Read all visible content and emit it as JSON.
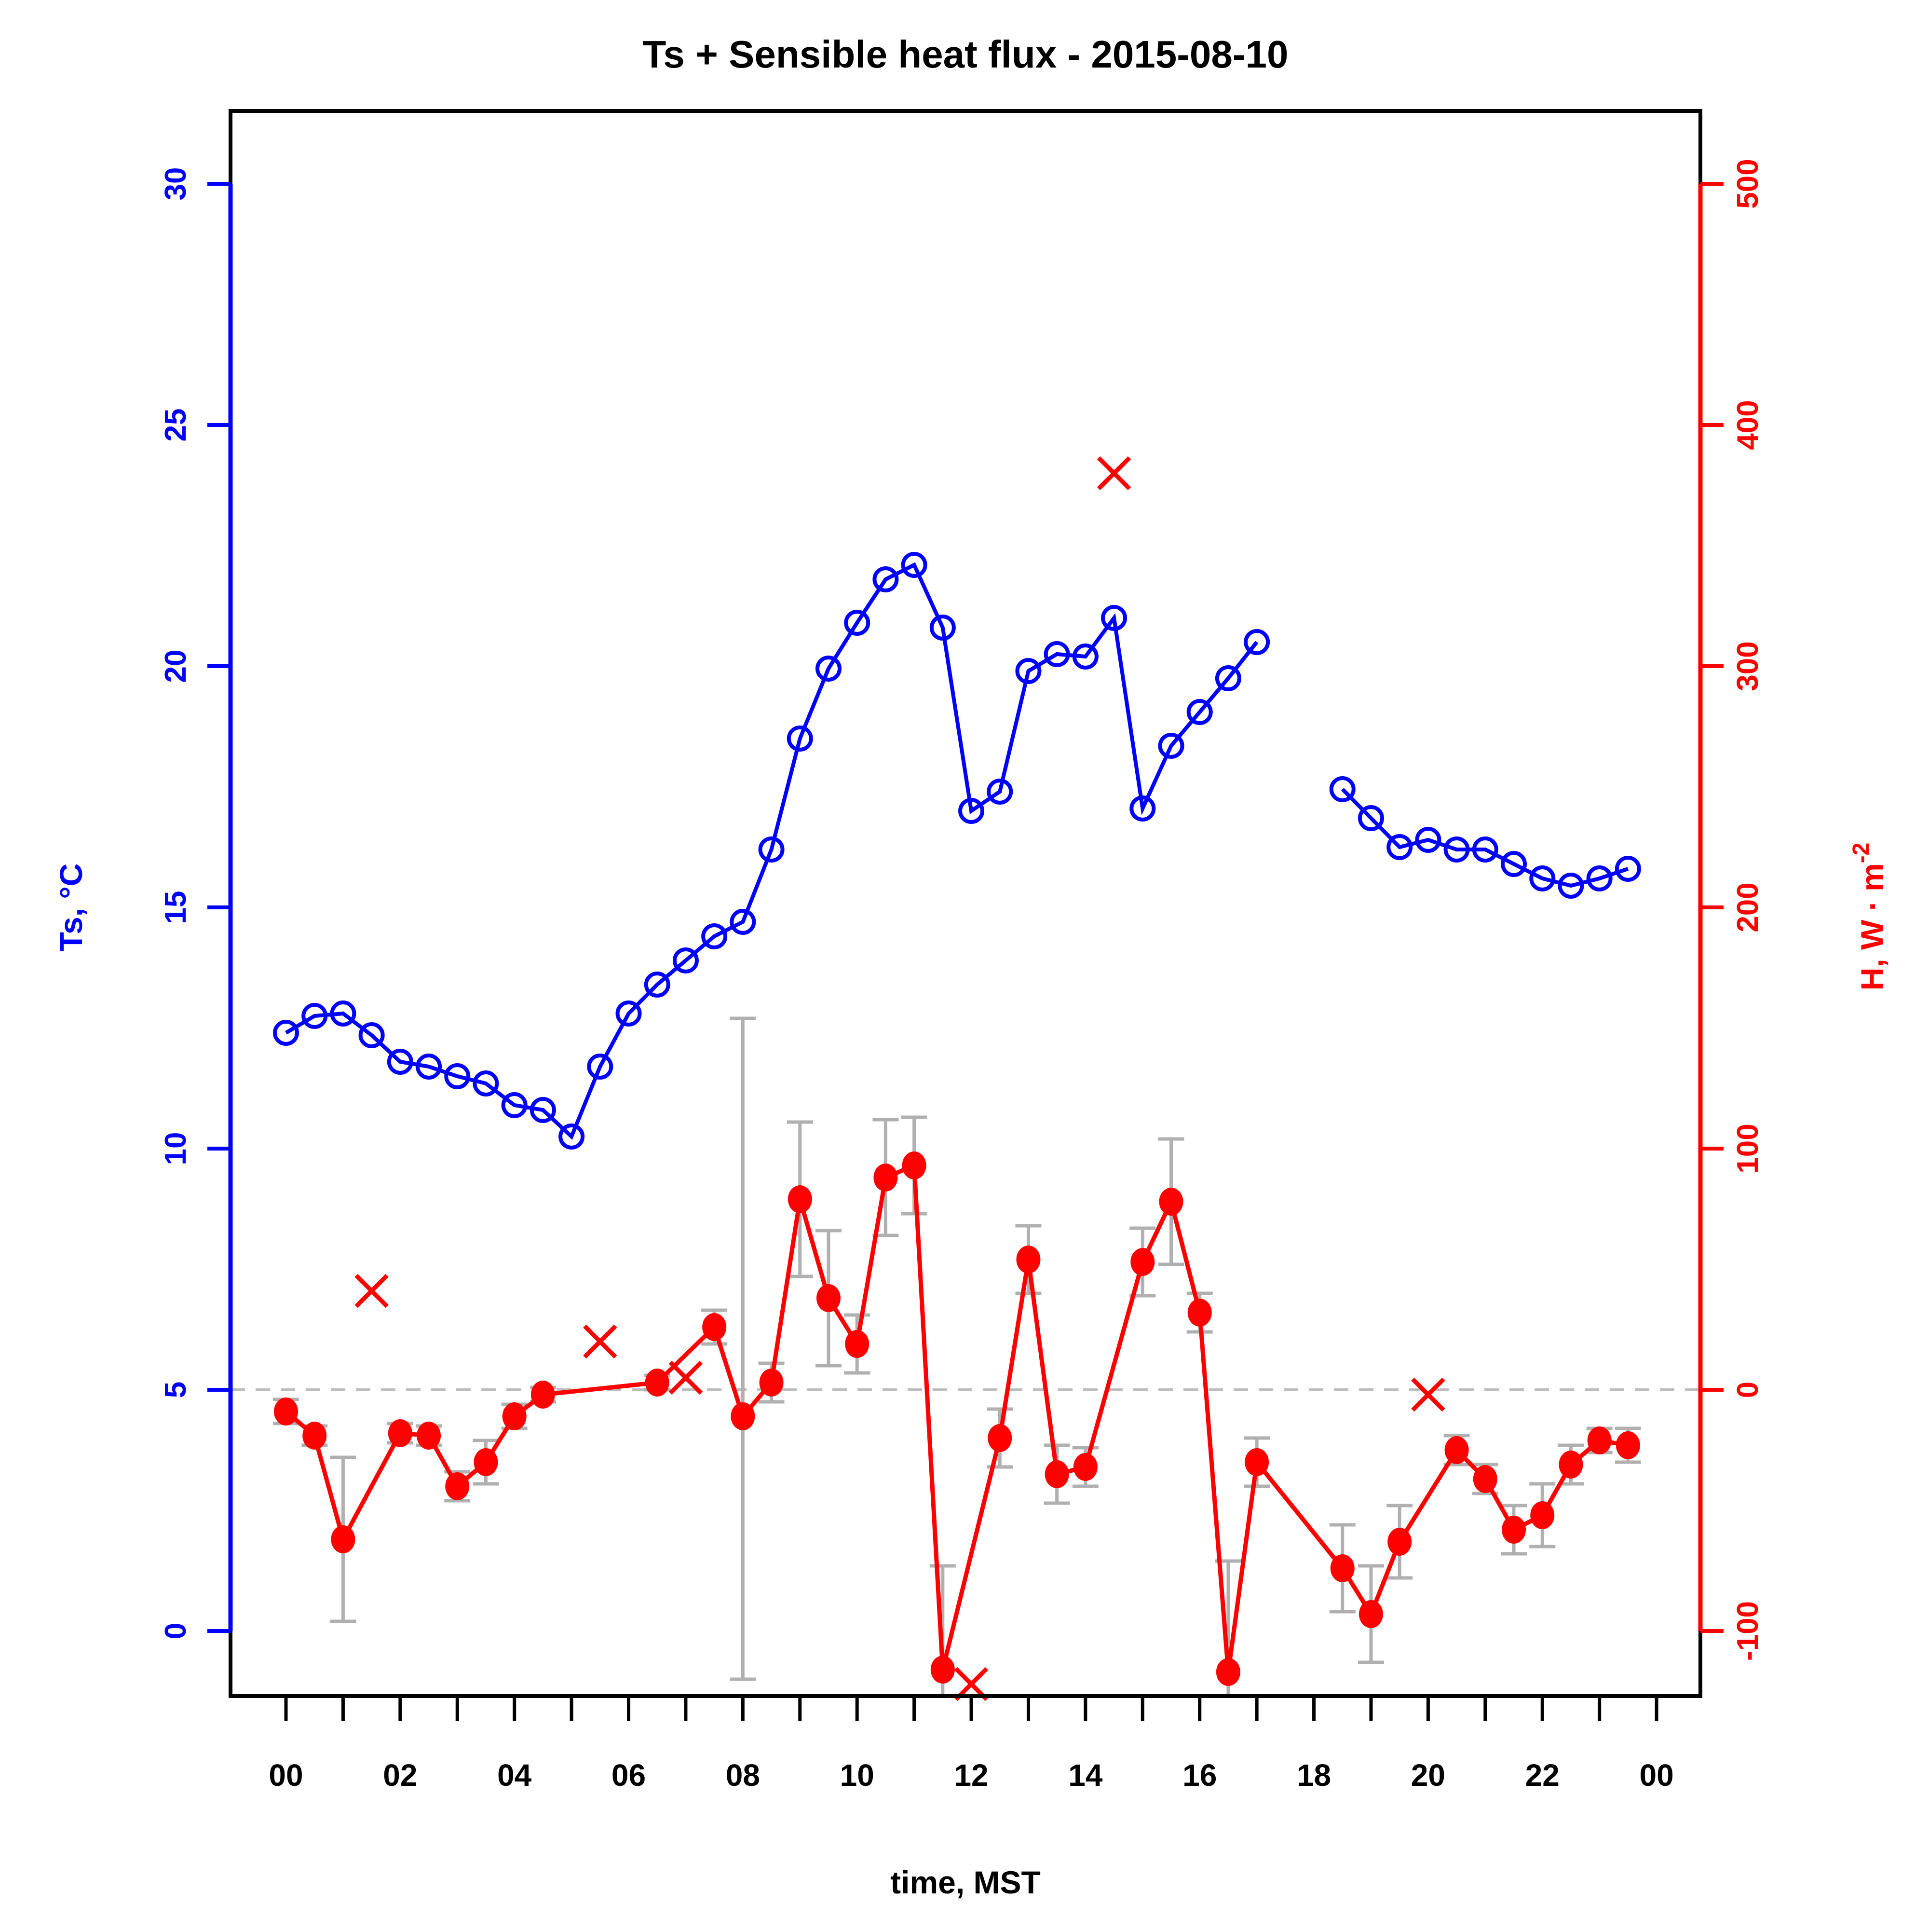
{
  "chart_data": {
    "type": "line",
    "title": "Ts + Sensible heat flux -  2015-08-10",
    "xlabel": "time, MST",
    "date": "2015-08-10",
    "left_axis": {
      "label": "Ts, °C",
      "color": "#0000ff",
      "ticks": [
        0,
        5,
        10,
        15,
        20,
        25,
        30
      ],
      "range_shown": [
        -1.3,
        31.5
      ]
    },
    "right_axis": {
      "label_main": "H, W · m",
      "label_sup": "-2",
      "label_full": "H, W·m⁻²",
      "color": "#ff0000",
      "ticks": [
        -100,
        0,
        100,
        200,
        300,
        400,
        500
      ],
      "range_shown": [
        -127,
        530
      ]
    },
    "x_axis": {
      "labels": [
        "00",
        "02",
        "04",
        "06",
        "08",
        "10",
        "12",
        "14",
        "16",
        "18",
        "20",
        "22",
        "00"
      ],
      "label_hours": [
        0,
        2,
        4,
        6,
        8,
        10,
        12,
        14,
        16,
        18,
        20,
        22,
        24
      ],
      "minor_tick_every_hours": 1,
      "hours_range": [
        0,
        24
      ]
    },
    "zero_line": {
      "value": 0,
      "axis": "right",
      "style": "dashed",
      "color": "#bdbdbd"
    },
    "grid": "off",
    "legend": "none",
    "series": [
      {
        "name": "Ts",
        "axis": "left",
        "marker": "open-circle",
        "color": "#0000ff",
        "connect_gaps": false,
        "points": [
          [
            0,
            12.4
          ],
          [
            0.5,
            12.75
          ],
          [
            1,
            12.8
          ],
          [
            1.5,
            12.35
          ],
          [
            2,
            11.8
          ],
          [
            2.5,
            11.7
          ],
          [
            3,
            11.5
          ],
          [
            3.5,
            11.35
          ],
          [
            4,
            10.9
          ],
          [
            4.5,
            10.8
          ],
          [
            5,
            10.25
          ],
          [
            5.5,
            11.7
          ],
          [
            6,
            12.8
          ],
          [
            6.5,
            13.4
          ],
          [
            7,
            13.9
          ],
          [
            7.5,
            14.4
          ],
          [
            8,
            14.7
          ],
          [
            8.5,
            16.2
          ],
          [
            9,
            18.5
          ],
          [
            9.5,
            19.95
          ],
          [
            10,
            20.9
          ],
          [
            10.5,
            21.8
          ],
          [
            11,
            22.1
          ],
          [
            11.5,
            20.8
          ],
          [
            12,
            17.0
          ],
          [
            12.5,
            17.4
          ],
          [
            13,
            19.9
          ],
          [
            13.5,
            20.25
          ],
          [
            14,
            20.2
          ],
          [
            14.5,
            21.0
          ],
          [
            15,
            17.05
          ],
          [
            15.5,
            18.35
          ],
          [
            16,
            19.05
          ],
          [
            16.5,
            19.75
          ],
          [
            17,
            20.5
          ],
          [
            18.5,
            17.45
          ],
          [
            19,
            16.85
          ],
          [
            19.5,
            16.25
          ],
          [
            20,
            16.4
          ],
          [
            20.5,
            16.2
          ],
          [
            21,
            16.2
          ],
          [
            21.5,
            15.9
          ],
          [
            22,
            15.6
          ],
          [
            22.5,
            15.45
          ],
          [
            23,
            15.6
          ],
          [
            23.5,
            15.8
          ]
        ]
      },
      {
        "name": "H",
        "axis": "right",
        "marker": "filled-circle",
        "color": "#ff0000",
        "error_color": "#b0b0b0",
        "connect_gaps": true,
        "points": [
          [
            0,
            -9,
            5
          ],
          [
            0.5,
            -19,
            4
          ],
          [
            1,
            -62,
            34
          ],
          [
            2,
            -18,
            4
          ],
          [
            2.5,
            -19,
            4
          ],
          [
            3,
            -40,
            6
          ],
          [
            3.5,
            -30,
            9
          ],
          [
            4,
            -11,
            5
          ],
          [
            4.5,
            -2,
            3
          ],
          [
            6.5,
            3,
            3
          ],
          [
            7.5,
            26,
            7
          ],
          [
            8,
            -11,
            null,
            -120,
            154
          ],
          [
            8.5,
            3,
            8
          ],
          [
            9,
            79,
            32
          ],
          [
            9.5,
            38,
            28
          ],
          [
            10,
            19,
            12
          ],
          [
            10.5,
            88,
            24
          ],
          [
            11,
            93,
            20
          ],
          [
            11.5,
            -116,
            43
          ],
          [
            12.5,
            -20,
            12
          ],
          [
            13,
            54,
            14
          ],
          [
            13.5,
            -35,
            12
          ],
          [
            14,
            -32,
            8
          ],
          [
            15,
            53,
            14
          ],
          [
            15.5,
            78,
            26
          ],
          [
            16,
            32,
            8
          ],
          [
            16.5,
            -117,
            46
          ],
          [
            17,
            -30,
            10
          ],
          [
            18.5,
            -74,
            18
          ],
          [
            19,
            -93,
            20
          ],
          [
            19.5,
            -63,
            15
          ],
          [
            20.5,
            -25,
            6
          ],
          [
            21,
            -37,
            6
          ],
          [
            21.5,
            -58,
            10
          ],
          [
            22,
            -52,
            13
          ],
          [
            22.5,
            -31,
            8
          ],
          [
            23,
            -21,
            5
          ],
          [
            23.5,
            -23,
            7
          ]
        ]
      },
      {
        "name": "H flagged",
        "axis": "right",
        "marker": "x",
        "color": "#ff0000",
        "connect_gaps": false,
        "points": [
          [
            1.5,
            41
          ],
          [
            5.5,
            20
          ],
          [
            7,
            5
          ],
          [
            12,
            -122
          ],
          [
            14.5,
            380
          ],
          [
            20,
            -2
          ]
        ]
      }
    ]
  }
}
